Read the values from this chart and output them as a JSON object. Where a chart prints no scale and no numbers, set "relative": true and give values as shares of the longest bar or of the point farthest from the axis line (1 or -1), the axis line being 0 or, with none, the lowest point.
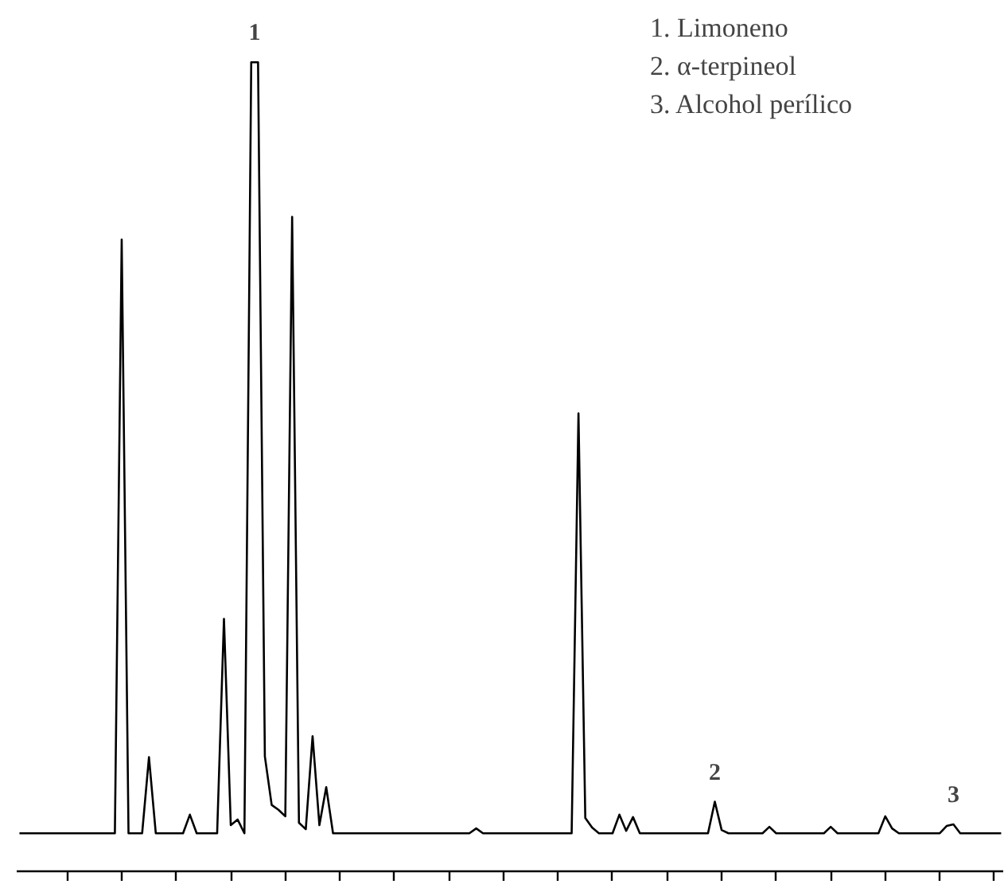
{
  "chart_data": {
    "type": "line",
    "relative": true,
    "categories": [
      null,
      null,
      null,
      null,
      null,
      null,
      null,
      null,
      null,
      null,
      null,
      null,
      null,
      null,
      null,
      null,
      null,
      null,
      null,
      null,
      null,
      null,
      null,
      null,
      null,
      null,
      null,
      null,
      null,
      null,
      null,
      null,
      null,
      null,
      null,
      null,
      null,
      null,
      null,
      null,
      null,
      null,
      null,
      null,
      null,
      null,
      null,
      null,
      null,
      null,
      null,
      null,
      null,
      null,
      null,
      null,
      null,
      null,
      null,
      null,
      null,
      null,
      null,
      null,
      null,
      null,
      null,
      null,
      null,
      null,
      null,
      null,
      null,
      null,
      null,
      null,
      null,
      null,
      null,
      null,
      null,
      null,
      null,
      null,
      null,
      null,
      null,
      null,
      null,
      null,
      null,
      null,
      null,
      null,
      null,
      null,
      null,
      null,
      null,
      null,
      null,
      null,
      null,
      null,
      null,
      null,
      null,
      null,
      null,
      null,
      null,
      null,
      null,
      null,
      null,
      null,
      null,
      null,
      null,
      null,
      null,
      null,
      null,
      null,
      null,
      null,
      null,
      null,
      null,
      null,
      null,
      null,
      null,
      null,
      null,
      null,
      null,
      null,
      null,
      null,
      null,
      null,
      null,
      null,
      null
    ],
    "series": [
      {
        "color": "#000000",
        "values": [
          0.047,
          0.047,
          0.047,
          0.047,
          0.047,
          0.047,
          0.047,
          0.047,
          0.047,
          0.047,
          0.047,
          0.047,
          0.047,
          0.047,
          0.047,
          0.781,
          0.047,
          0.047,
          0.047,
          0.141,
          0.047,
          0.047,
          0.047,
          0.047,
          0.047,
          0.07,
          0.047,
          0.047,
          0.047,
          0.047,
          0.312,
          0.057,
          0.064,
          0.047,
          1,
          1,
          0.142,
          0.082,
          0.076,
          0.068,
          0.809,
          0.06,
          0.052,
          0.167,
          0.057,
          0.104,
          0.047,
          0.047,
          0.047,
          0.047,
          0.047,
          0.047,
          0.047,
          0.047,
          0.047,
          0.047,
          0.047,
          0.047,
          0.047,
          0.047,
          0.047,
          0.047,
          0.047,
          0.047,
          0.047,
          0.047,
          0.047,
          0.053,
          0.047,
          0.047,
          0.047,
          0.047,
          0.047,
          0.047,
          0.047,
          0.047,
          0.047,
          0.047,
          0.047,
          0.047,
          0.047,
          0.047,
          0.566,
          0.066,
          0.054,
          0.047,
          0.047,
          0.047,
          0.07,
          0.05,
          0.067,
          0.047,
          0.047,
          0.047,
          0.047,
          0.047,
          0.047,
          0.047,
          0.047,
          0.047,
          0.047,
          0.047,
          0.086,
          0.051,
          0.047,
          0.047,
          0.047,
          0.047,
          0.047,
          0.047,
          0.055,
          0.047,
          0.047,
          0.047,
          0.047,
          0.047,
          0.047,
          0.047,
          0.047,
          0.055,
          0.047,
          0.047,
          0.047,
          0.047,
          0.047,
          0.047,
          0.047,
          0.068,
          0.053,
          0.047,
          0.047,
          0.047,
          0.047,
          0.047,
          0.047,
          0.047,
          0.056,
          0.058,
          0.047,
          0.047,
          0.047,
          0.047,
          0.047,
          0.047,
          0.047
        ]
      }
    ],
    "annotations": [
      {
        "text": "1",
        "y": 1
      },
      {
        "text": "2",
        "y": 0.086
      },
      {
        "text": "3",
        "y": 0.058
      },
      "1. Limoneno",
      "2. α-terpineol",
      "3. Alcohol perílico"
    ],
    "grid": false
  }
}
